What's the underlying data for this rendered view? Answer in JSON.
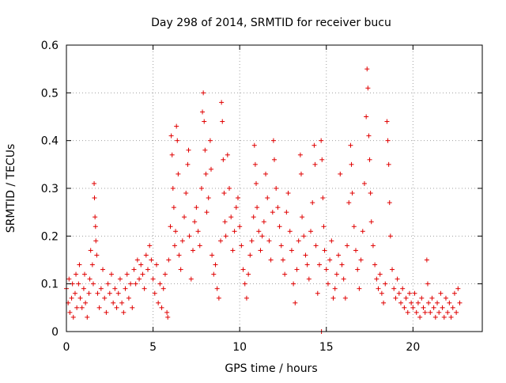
{
  "chart_data": {
    "type": "scatter",
    "title": "Day 298 of 2014, SRMTID for receiver bucu",
    "xlabel": "GPS time / hours",
    "ylabel": "SRMTID / TECUs",
    "xlim": [
      0,
      24
    ],
    "ylim": [
      0,
      0.6
    ],
    "xticks": [
      0,
      5,
      10,
      15,
      20
    ],
    "yticks": [
      0,
      0.1,
      0.2,
      0.3,
      0.4,
      0.5,
      0.6
    ],
    "grid": true,
    "marker": "+",
    "marker_color": "#e00000",
    "series": [
      {
        "name": "SRMTID",
        "points": [
          [
            0.0,
            0.09
          ],
          [
            0.1,
            0.06
          ],
          [
            0.15,
            0.11
          ],
          [
            0.2,
            0.04
          ],
          [
            0.3,
            0.07
          ],
          [
            0.35,
            0.1
          ],
          [
            0.4,
            0.03
          ],
          [
            0.5,
            0.08
          ],
          [
            0.55,
            0.12
          ],
          [
            0.6,
            0.05
          ],
          [
            0.7,
            0.1
          ],
          [
            0.75,
            0.14
          ],
          [
            0.8,
            0.07
          ],
          [
            0.9,
            0.05
          ],
          [
            1.0,
            0.09
          ],
          [
            1.05,
            0.12
          ],
          [
            1.1,
            0.06
          ],
          [
            1.2,
            0.03
          ],
          [
            1.3,
            0.08
          ],
          [
            1.35,
            0.11
          ],
          [
            1.4,
            0.17
          ],
          [
            1.5,
            0.14
          ],
          [
            1.55,
            0.1
          ],
          [
            1.6,
            0.31
          ],
          [
            1.62,
            0.28
          ],
          [
            1.65,
            0.24
          ],
          [
            1.68,
            0.22
          ],
          [
            1.7,
            0.19
          ],
          [
            1.75,
            0.16
          ],
          [
            1.8,
            0.08
          ],
          [
            1.9,
            0.05
          ],
          [
            2.0,
            0.09
          ],
          [
            2.1,
            0.13
          ],
          [
            2.2,
            0.07
          ],
          [
            2.3,
            0.04
          ],
          [
            2.4,
            0.1
          ],
          [
            2.5,
            0.08
          ],
          [
            2.6,
            0.12
          ],
          [
            2.7,
            0.06
          ],
          [
            2.8,
            0.09
          ],
          [
            2.9,
            0.05
          ],
          [
            3.0,
            0.08
          ],
          [
            3.1,
            0.11
          ],
          [
            3.2,
            0.06
          ],
          [
            3.3,
            0.04
          ],
          [
            3.4,
            0.09
          ],
          [
            3.5,
            0.12
          ],
          [
            3.6,
            0.07
          ],
          [
            3.7,
            0.1
          ],
          [
            3.8,
            0.05
          ],
          [
            3.9,
            0.13
          ],
          [
            4.0,
            0.1
          ],
          [
            4.1,
            0.15
          ],
          [
            4.2,
            0.11
          ],
          [
            4.3,
            0.14
          ],
          [
            4.4,
            0.12
          ],
          [
            4.5,
            0.09
          ],
          [
            4.6,
            0.16
          ],
          [
            4.7,
            0.13
          ],
          [
            4.8,
            0.18
          ],
          [
            4.9,
            0.15
          ],
          [
            5.0,
            0.11
          ],
          [
            5.1,
            0.08
          ],
          [
            5.2,
            0.14
          ],
          [
            5.3,
            0.06
          ],
          [
            5.4,
            0.1
          ],
          [
            5.5,
            0.05
          ],
          [
            5.6,
            0.09
          ],
          [
            5.7,
            0.12
          ],
          [
            5.8,
            0.04
          ],
          [
            5.85,
            0.03
          ],
          [
            5.9,
            0.15
          ],
          [
            6.0,
            0.22
          ],
          [
            6.05,
            0.41
          ],
          [
            6.1,
            0.37
          ],
          [
            6.15,
            0.3
          ],
          [
            6.2,
            0.26
          ],
          [
            6.25,
            0.18
          ],
          [
            6.3,
            0.21
          ],
          [
            6.35,
            0.43
          ],
          [
            6.4,
            0.4
          ],
          [
            6.45,
            0.33
          ],
          [
            6.5,
            0.16
          ],
          [
            6.6,
            0.13
          ],
          [
            6.7,
            0.19
          ],
          [
            6.8,
            0.24
          ],
          [
            6.9,
            0.29
          ],
          [
            7.0,
            0.35
          ],
          [
            7.05,
            0.38
          ],
          [
            7.1,
            0.2
          ],
          [
            7.2,
            0.11
          ],
          [
            7.3,
            0.17
          ],
          [
            7.4,
            0.23
          ],
          [
            7.5,
            0.26
          ],
          [
            7.6,
            0.21
          ],
          [
            7.7,
            0.18
          ],
          [
            7.8,
            0.3
          ],
          [
            7.85,
            0.46
          ],
          [
            7.9,
            0.5
          ],
          [
            7.95,
            0.44
          ],
          [
            8.0,
            0.38
          ],
          [
            8.05,
            0.33
          ],
          [
            8.1,
            0.25
          ],
          [
            8.2,
            0.28
          ],
          [
            8.3,
            0.4
          ],
          [
            8.35,
            0.34
          ],
          [
            8.4,
            0.16
          ],
          [
            8.5,
            0.12
          ],
          [
            8.6,
            0.14
          ],
          [
            8.7,
            0.09
          ],
          [
            8.8,
            0.07
          ],
          [
            8.9,
            0.19
          ],
          [
            8.95,
            0.48
          ],
          [
            9.0,
            0.44
          ],
          [
            9.05,
            0.36
          ],
          [
            9.1,
            0.29
          ],
          [
            9.15,
            0.23
          ],
          [
            9.2,
            0.2
          ],
          [
            9.3,
            0.37
          ],
          [
            9.4,
            0.3
          ],
          [
            9.5,
            0.24
          ],
          [
            9.6,
            0.17
          ],
          [
            9.7,
            0.21
          ],
          [
            9.8,
            0.26
          ],
          [
            9.9,
            0.28
          ],
          [
            10.0,
            0.22
          ],
          [
            10.1,
            0.18
          ],
          [
            10.2,
            0.13
          ],
          [
            10.3,
            0.1
          ],
          [
            10.4,
            0.07
          ],
          [
            10.5,
            0.12
          ],
          [
            10.6,
            0.16
          ],
          [
            10.7,
            0.19
          ],
          [
            10.8,
            0.24
          ],
          [
            10.85,
            0.39
          ],
          [
            10.9,
            0.35
          ],
          [
            10.95,
            0.31
          ],
          [
            11.0,
            0.26
          ],
          [
            11.1,
            0.21
          ],
          [
            11.2,
            0.17
          ],
          [
            11.3,
            0.2
          ],
          [
            11.4,
            0.23
          ],
          [
            11.5,
            0.33
          ],
          [
            11.6,
            0.28
          ],
          [
            11.7,
            0.19
          ],
          [
            11.8,
            0.15
          ],
          [
            11.9,
            0.25
          ],
          [
            11.95,
            0.4
          ],
          [
            12.0,
            0.36
          ],
          [
            12.1,
            0.3
          ],
          [
            12.2,
            0.26
          ],
          [
            12.3,
            0.22
          ],
          [
            12.4,
            0.18
          ],
          [
            12.5,
            0.15
          ],
          [
            12.6,
            0.12
          ],
          [
            12.7,
            0.25
          ],
          [
            12.8,
            0.29
          ],
          [
            12.9,
            0.21
          ],
          [
            13.0,
            0.17
          ],
          [
            13.1,
            0.1
          ],
          [
            13.2,
            0.06
          ],
          [
            13.3,
            0.13
          ],
          [
            13.4,
            0.19
          ],
          [
            13.5,
            0.37
          ],
          [
            13.55,
            0.33
          ],
          [
            13.6,
            0.24
          ],
          [
            13.7,
            0.2
          ],
          [
            13.8,
            0.16
          ],
          [
            13.9,
            0.14
          ],
          [
            14.0,
            0.11
          ],
          [
            14.1,
            0.21
          ],
          [
            14.2,
            0.27
          ],
          [
            14.3,
            0.39
          ],
          [
            14.35,
            0.35
          ],
          [
            14.4,
            0.18
          ],
          [
            14.5,
            0.08
          ],
          [
            14.6,
            0.14
          ],
          [
            14.7,
            0.4
          ],
          [
            14.75,
            0.36
          ],
          [
            14.8,
            0.28
          ],
          [
            14.85,
            0.22
          ],
          [
            14.9,
            0.17
          ],
          [
            15.0,
            0.13
          ],
          [
            15.1,
            0.1
          ],
          [
            15.2,
            0.15
          ],
          [
            15.3,
            0.19
          ],
          [
            15.4,
            0.07
          ],
          [
            15.5,
            0.09
          ],
          [
            15.6,
            0.12
          ],
          [
            15.7,
            0.16
          ],
          [
            15.8,
            0.33
          ],
          [
            15.9,
            0.14
          ],
          [
            16.0,
            0.11
          ],
          [
            16.1,
            0.07
          ],
          [
            16.2,
            0.18
          ],
          [
            16.3,
            0.27
          ],
          [
            16.4,
            0.39
          ],
          [
            16.45,
            0.35
          ],
          [
            16.5,
            0.29
          ],
          [
            16.6,
            0.22
          ],
          [
            16.7,
            0.17
          ],
          [
            16.8,
            0.13
          ],
          [
            16.9,
            0.09
          ],
          [
            17.0,
            0.15
          ],
          [
            17.1,
            0.21
          ],
          [
            17.2,
            0.31
          ],
          [
            17.3,
            0.45
          ],
          [
            17.35,
            0.55
          ],
          [
            17.4,
            0.51
          ],
          [
            17.45,
            0.41
          ],
          [
            17.5,
            0.36
          ],
          [
            17.55,
            0.29
          ],
          [
            17.6,
            0.23
          ],
          [
            17.7,
            0.18
          ],
          [
            17.8,
            0.14
          ],
          [
            17.9,
            0.11
          ],
          [
            18.0,
            0.09
          ],
          [
            18.1,
            0.12
          ],
          [
            18.2,
            0.08
          ],
          [
            18.3,
            0.06
          ],
          [
            18.4,
            0.1
          ],
          [
            18.5,
            0.44
          ],
          [
            18.55,
            0.4
          ],
          [
            18.6,
            0.35
          ],
          [
            18.65,
            0.27
          ],
          [
            18.7,
            0.2
          ],
          [
            18.8,
            0.13
          ],
          [
            18.9,
            0.09
          ],
          [
            19.0,
            0.07
          ],
          [
            19.1,
            0.11
          ],
          [
            19.2,
            0.08
          ],
          [
            19.3,
            0.06
          ],
          [
            19.4,
            0.09
          ],
          [
            19.5,
            0.05
          ],
          [
            19.6,
            0.07
          ],
          [
            19.7,
            0.04
          ],
          [
            19.8,
            0.08
          ],
          [
            19.9,
            0.06
          ],
          [
            20.0,
            0.05
          ],
          [
            20.1,
            0.08
          ],
          [
            20.2,
            0.04
          ],
          [
            20.3,
            0.06
          ],
          [
            20.4,
            0.03
          ],
          [
            20.5,
            0.07
          ],
          [
            20.6,
            0.05
          ],
          [
            20.7,
            0.04
          ],
          [
            20.8,
            0.15
          ],
          [
            20.85,
            0.1
          ],
          [
            20.9,
            0.06
          ],
          [
            21.0,
            0.04
          ],
          [
            21.1,
            0.07
          ],
          [
            21.2,
            0.05
          ],
          [
            21.3,
            0.03
          ],
          [
            21.4,
            0.06
          ],
          [
            21.5,
            0.04
          ],
          [
            21.6,
            0.08
          ],
          [
            21.7,
            0.05
          ],
          [
            21.8,
            0.03
          ],
          [
            21.9,
            0.07
          ],
          [
            22.0,
            0.04
          ],
          [
            22.1,
            0.06
          ],
          [
            22.2,
            0.03
          ],
          [
            22.3,
            0.05
          ],
          [
            22.4,
            0.08
          ],
          [
            22.5,
            0.04
          ],
          [
            22.6,
            0.09
          ],
          [
            22.7,
            0.06
          ],
          [
            14.72,
            0.0
          ]
        ]
      }
    ]
  }
}
